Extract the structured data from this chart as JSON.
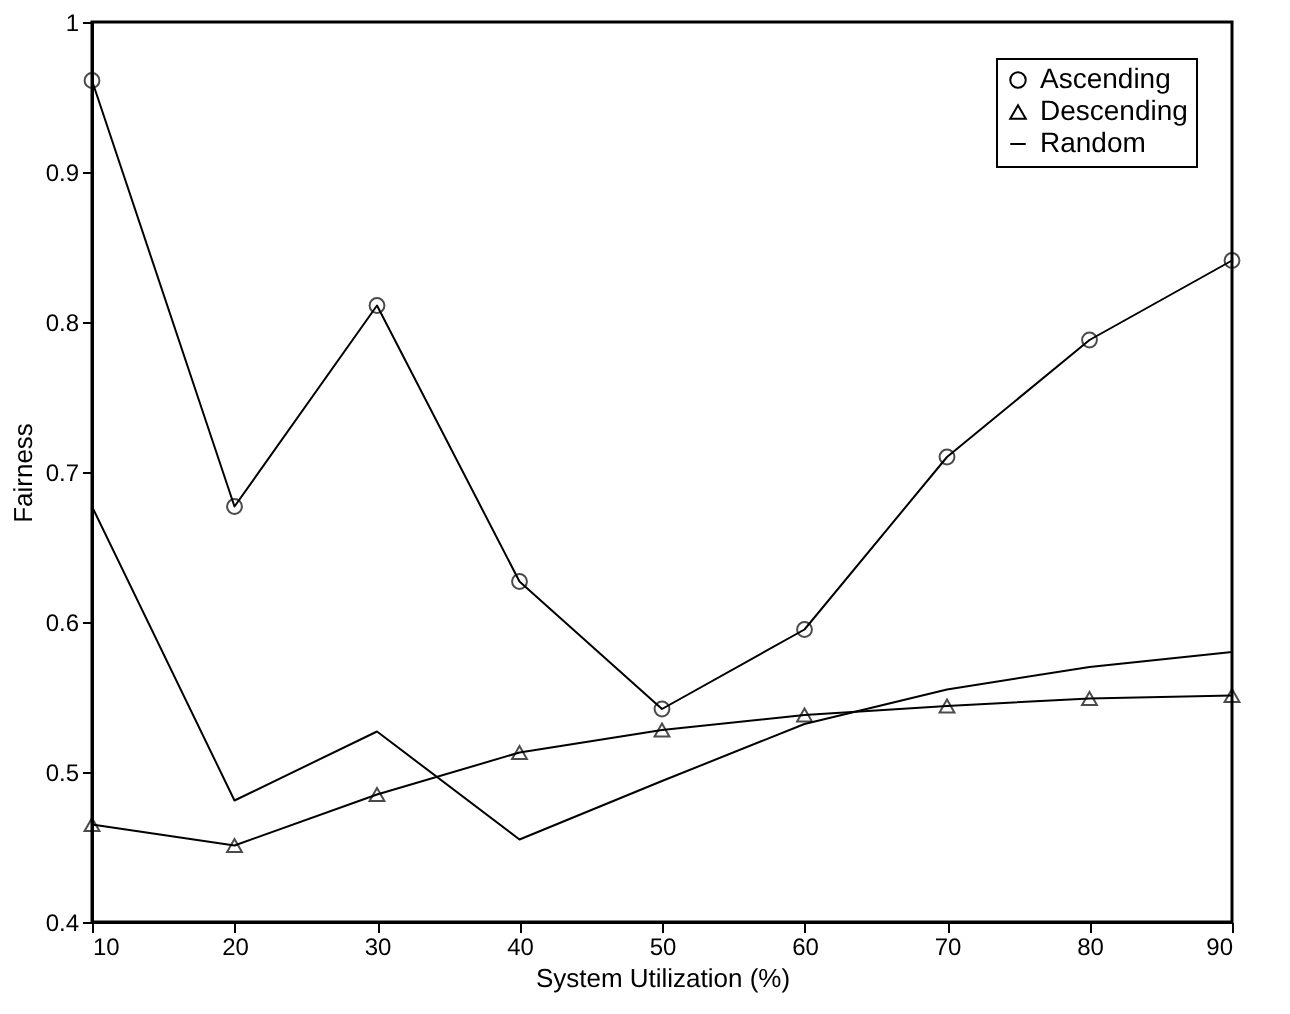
{
  "chart_data": {
    "type": "line",
    "xlabel": "System Utilization (%)",
    "ylabel": "Fairness",
    "x": [
      10,
      20,
      30,
      40,
      50,
      60,
      70,
      80,
      90
    ],
    "series": [
      {
        "name": "Ascending",
        "color": "#000000",
        "marker": "circle",
        "values": [
          0.961,
          0.677,
          0.811,
          0.627,
          0.542,
          0.595,
          0.71,
          0.788,
          0.841
        ]
      },
      {
        "name": "Descending",
        "color": "#000000",
        "marker": "triangle",
        "values": [
          0.465,
          0.451,
          0.485,
          0.513,
          0.528,
          0.538,
          0.544,
          0.549,
          0.551
        ]
      },
      {
        "name": "Random",
        "color": "#000000",
        "marker": "none",
        "values": [
          0.677,
          0.481,
          0.527,
          0.455,
          0.494,
          0.532,
          0.555,
          0.57,
          0.58
        ]
      }
    ],
    "xlim": [
      10,
      90
    ],
    "xticks": [
      10,
      20,
      30,
      40,
      50,
      60,
      70,
      80,
      90
    ],
    "ylim": [
      0.4,
      1
    ],
    "yticks": [
      0.4,
      0.5,
      0.6,
      0.7,
      0.8,
      0.9,
      1
    ],
    "grid": false,
    "legend": "top right",
    "line_style": "solid"
  }
}
